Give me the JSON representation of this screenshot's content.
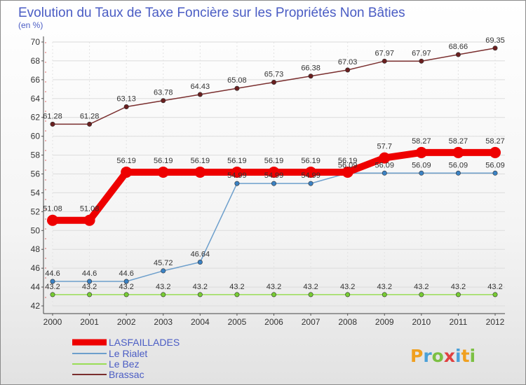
{
  "chart_data": {
    "type": "line",
    "title": "Evolution du Taux de Taxe Foncière sur les Propriétés Non Bâties",
    "unit_label": "(en %)",
    "x": [
      "2000",
      "2001",
      "2002",
      "2003",
      "2004",
      "2005",
      "2006",
      "2007",
      "2008",
      "2009",
      "2010",
      "2011",
      "2012"
    ],
    "ylim": [
      42,
      70
    ],
    "yticks": [
      42,
      44,
      46,
      48,
      50,
      52,
      54,
      56,
      58,
      60,
      62,
      64,
      66,
      68,
      70
    ],
    "grid": true,
    "legend_position": "bottom-left",
    "series": [
      {
        "name": "LASFAILLADES",
        "color": "#ee0000",
        "values": [
          51.08,
          51.08,
          56.19,
          56.19,
          56.19,
          56.19,
          56.19,
          56.19,
          56.19,
          57.7,
          58.27,
          58.27,
          58.27
        ],
        "labels": [
          "51.08",
          "51.08",
          "56.19",
          "56.19",
          "56.19",
          "56.19",
          "56.19",
          "56.19",
          "56.19",
          "57.7",
          "58.27",
          "58.27",
          "58.27"
        ]
      },
      {
        "name": "Le Rialet",
        "color": "#6d9fcc",
        "values": [
          44.6,
          44.6,
          44.6,
          45.72,
          46.64,
          54.99,
          54.99,
          54.99,
          56.09,
          56.09,
          56.09,
          56.09,
          56.09
        ],
        "labels": [
          "44.6",
          "44.6",
          "44.6",
          "45.72",
          "46.64",
          "54.99",
          "54.99",
          "54.99",
          "56.09",
          "56.09",
          "56.09",
          "56.09",
          "56.09"
        ]
      },
      {
        "name": "Le Bez",
        "color": "#99dd55",
        "values": [
          43.2,
          43.2,
          43.2,
          43.2,
          43.2,
          43.2,
          43.2,
          43.2,
          43.2,
          43.2,
          43.2,
          43.2,
          43.2
        ],
        "labels": [
          "43.2",
          "43.2",
          "43.2",
          "43.2",
          "43.2",
          "43.2",
          "43.2",
          "43.2",
          "43.2",
          "43.2",
          "43.2",
          "43.2",
          "43.2"
        ]
      },
      {
        "name": "Brassac",
        "color": "#7a2e2e",
        "values": [
          61.28,
          61.28,
          63.13,
          63.78,
          64.43,
          65.08,
          65.73,
          66.38,
          67.03,
          67.97,
          67.97,
          68.66,
          69.35
        ],
        "labels": [
          "61.28",
          "61.28",
          "63.13",
          "63.78",
          "64.43",
          "65.08",
          "65.73",
          "66.38",
          "67.03",
          "67.97",
          "67.97",
          "68.66",
          "69.35"
        ]
      }
    ]
  },
  "logo": {
    "letters": [
      "P",
      "r",
      "o",
      "x",
      "i",
      "t",
      "i"
    ],
    "colors": [
      "#f0a020",
      "#4aa0d8",
      "#7cc043",
      "#e04040",
      "#4aa0d8",
      "#f0a020",
      "#7cc043"
    ]
  }
}
